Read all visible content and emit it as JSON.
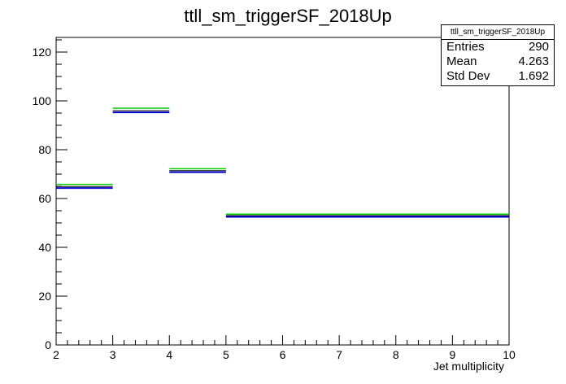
{
  "chart_data": {
    "type": "bar",
    "title": "ttll_sm_triggerSF_2018Up",
    "xlabel": "Jet multiplicity",
    "ylabel": "",
    "xlim": [
      2,
      10
    ],
    "ylim": [
      0,
      126
    ],
    "x_ticks": [
      2,
      3,
      4,
      5,
      6,
      7,
      8,
      9,
      10
    ],
    "y_ticks": [
      0,
      20,
      40,
      60,
      80,
      100,
      120
    ],
    "bins": [
      {
        "low": 2,
        "high": 3,
        "nominal": 64.9,
        "up": 65.8,
        "down": 64.3
      },
      {
        "low": 3,
        "high": 4,
        "nominal": 96.0,
        "up": 97.0,
        "down": 95.3
      },
      {
        "low": 4,
        "high": 5,
        "nominal": 71.4,
        "up": 72.2,
        "down": 70.8
      },
      {
        "low": 5,
        "high": 10,
        "nominal": 53.0,
        "up": 53.6,
        "down": 52.5
      }
    ],
    "series_colors": {
      "nominal": "#000000",
      "up": "#00cc00",
      "down": "#0000cc"
    },
    "grid": false,
    "legend_position": "top-right"
  },
  "stats": {
    "title": "ttll_sm_triggerSF_2018Up",
    "rows": [
      {
        "label": "Entries",
        "value": "290"
      },
      {
        "label": "Mean",
        "value": "4.263"
      },
      {
        "label": "Std Dev",
        "value": "1.692"
      }
    ]
  }
}
